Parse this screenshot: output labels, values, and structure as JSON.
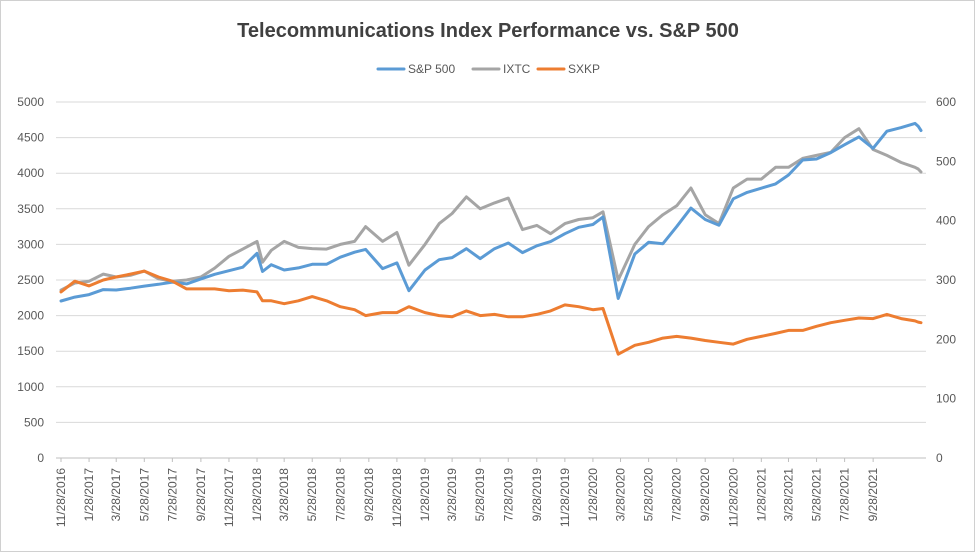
{
  "chart_data": {
    "type": "line",
    "title": "Telecommunications Index Performance vs. S&P 500",
    "legend_position": "top",
    "grid": true,
    "x_tick_labels": [
      "11/28/2016",
      "1/28/2017",
      "3/28/2017",
      "5/28/2017",
      "7/28/2017",
      "9/28/2017",
      "11/28/2017",
      "1/28/2018",
      "3/28/2018",
      "5/28/2018",
      "7/28/2018",
      "9/28/2018",
      "11/28/2018",
      "1/28/2019",
      "3/28/2019",
      "5/28/2019",
      "7/28/2019",
      "9/28/2019",
      "11/28/2019",
      "1/28/2020",
      "3/28/2020",
      "5/28/2020",
      "7/28/2020",
      "9/28/2020",
      "11/28/2020",
      "1/28/2021",
      "3/28/2021",
      "5/28/2021",
      "7/28/2021",
      "9/28/2021"
    ],
    "y_left": {
      "lim": [
        0,
        5000
      ],
      "ticks": [
        0,
        500,
        1000,
        1500,
        2000,
        2500,
        3000,
        3500,
        4000,
        4500,
        5000
      ]
    },
    "y_right": {
      "lim": [
        0,
        600
      ],
      "ticks": [
        0,
        100,
        200,
        300,
        400,
        500,
        600
      ]
    },
    "series": [
      {
        "name": "S&P 500",
        "axis": "left",
        "color": "#5b9bd5",
        "points": [
          [
            "11/28/2016",
            2205
          ],
          [
            "12/28/2016",
            2260
          ],
          [
            "1/28/2017",
            2295
          ],
          [
            "2/28/2017",
            2365
          ],
          [
            "3/28/2017",
            2360
          ],
          [
            "4/28/2017",
            2385
          ],
          [
            "5/28/2017",
            2415
          ],
          [
            "6/28/2017",
            2440
          ],
          [
            "7/28/2017",
            2470
          ],
          [
            "8/28/2017",
            2445
          ],
          [
            "9/28/2017",
            2515
          ],
          [
            "10/28/2017",
            2580
          ],
          [
            "11/28/2017",
            2630
          ],
          [
            "12/28/2017",
            2680
          ],
          [
            "1/28/2018",
            2875
          ],
          [
            "2/9/2018",
            2620
          ],
          [
            "2/28/2018",
            2715
          ],
          [
            "3/28/2018",
            2640
          ],
          [
            "4/28/2018",
            2670
          ],
          [
            "5/28/2018",
            2720
          ],
          [
            "6/28/2018",
            2720
          ],
          [
            "7/28/2018",
            2820
          ],
          [
            "8/28/2018",
            2890
          ],
          [
            "9/21/2018",
            2930
          ],
          [
            "10/28/2018",
            2660
          ],
          [
            "11/28/2018",
            2740
          ],
          [
            "12/24/2018",
            2350
          ],
          [
            "1/28/2019",
            2640
          ],
          [
            "2/28/2019",
            2785
          ],
          [
            "3/28/2019",
            2815
          ],
          [
            "4/28/2019",
            2940
          ],
          [
            "5/28/2019",
            2800
          ],
          [
            "6/28/2019",
            2940
          ],
          [
            "7/28/2019",
            3020
          ],
          [
            "8/28/2019",
            2885
          ],
          [
            "9/28/2019",
            2980
          ],
          [
            "10/28/2019",
            3040
          ],
          [
            "11/28/2019",
            3150
          ],
          [
            "12/28/2019",
            3240
          ],
          [
            "1/28/2020",
            3280
          ],
          [
            "2/19/2020",
            3385
          ],
          [
            "3/23/2020",
            2240
          ],
          [
            "4/28/2020",
            2865
          ],
          [
            "5/28/2020",
            3030
          ],
          [
            "6/28/2020",
            3010
          ],
          [
            "7/28/2020",
            3250
          ],
          [
            "8/28/2020",
            3510
          ],
          [
            "9/28/2020",
            3350
          ],
          [
            "10/28/2020",
            3270
          ],
          [
            "11/28/2020",
            3640
          ],
          [
            "12/28/2020",
            3730
          ],
          [
            "1/28/2021",
            3790
          ],
          [
            "2/28/2021",
            3850
          ],
          [
            "3/28/2021",
            3975
          ],
          [
            "4/28/2021",
            4185
          ],
          [
            "5/28/2021",
            4200
          ],
          [
            "6/28/2021",
            4290
          ],
          [
            "7/28/2021",
            4400
          ],
          [
            "8/28/2021",
            4510
          ],
          [
            "9/28/2021",
            4350
          ],
          [
            "10/28/2021",
            4590
          ],
          [
            "11/28/2021",
            4640
          ],
          [
            "12/28/2021",
            4700
          ],
          [
            "1/4/2022",
            4660
          ],
          [
            "1/10/2022",
            4600
          ]
        ]
      },
      {
        "name": "IXTC",
        "axis": "right",
        "color": "#a5a5a5",
        "points": [
          [
            "11/28/2016",
            283
          ],
          [
            "12/28/2016",
            295
          ],
          [
            "1/28/2017",
            298
          ],
          [
            "2/28/2017",
            310
          ],
          [
            "3/28/2017",
            305
          ],
          [
            "4/28/2017",
            308
          ],
          [
            "5/28/2017",
            315
          ],
          [
            "6/28/2017",
            302
          ],
          [
            "7/28/2017",
            298
          ],
          [
            "8/28/2017",
            300
          ],
          [
            "9/28/2017",
            305
          ],
          [
            "10/28/2017",
            320
          ],
          [
            "11/28/2017",
            340
          ],
          [
            "12/28/2017",
            352
          ],
          [
            "1/28/2018",
            365
          ],
          [
            "2/9/2018",
            330
          ],
          [
            "2/28/2018",
            350
          ],
          [
            "3/28/2018",
            365
          ],
          [
            "4/28/2018",
            355
          ],
          [
            "5/28/2018",
            353
          ],
          [
            "6/28/2018",
            352
          ],
          [
            "7/28/2018",
            360
          ],
          [
            "8/28/2018",
            365
          ],
          [
            "9/21/2018",
            390
          ],
          [
            "10/28/2018",
            365
          ],
          [
            "11/28/2018",
            380
          ],
          [
            "12/24/2018",
            325
          ],
          [
            "1/28/2019",
            360
          ],
          [
            "2/28/2019",
            395
          ],
          [
            "3/28/2019",
            412
          ],
          [
            "4/28/2019",
            440
          ],
          [
            "5/28/2019",
            420
          ],
          [
            "6/28/2019",
            430
          ],
          [
            "7/28/2019",
            438
          ],
          [
            "8/28/2019",
            385
          ],
          [
            "9/28/2019",
            392
          ],
          [
            "10/28/2019",
            378
          ],
          [
            "11/28/2019",
            395
          ],
          [
            "12/28/2019",
            402
          ],
          [
            "1/28/2020",
            405
          ],
          [
            "2/19/2020",
            415
          ],
          [
            "3/23/2020",
            300
          ],
          [
            "4/28/2020",
            360
          ],
          [
            "5/28/2020",
            390
          ],
          [
            "6/28/2020",
            410
          ],
          [
            "7/28/2020",
            425
          ],
          [
            "8/28/2020",
            455
          ],
          [
            "9/28/2020",
            410
          ],
          [
            "10/28/2020",
            395
          ],
          [
            "11/28/2020",
            455
          ],
          [
            "12/28/2020",
            470
          ],
          [
            "1/28/2021",
            470
          ],
          [
            "2/28/2021",
            490
          ],
          [
            "3/28/2021",
            490
          ],
          [
            "4/28/2021",
            505
          ],
          [
            "5/28/2021",
            510
          ],
          [
            "6/28/2021",
            515
          ],
          [
            "7/28/2021",
            540
          ],
          [
            "8/28/2021",
            555
          ],
          [
            "9/28/2021",
            520
          ],
          [
            "10/28/2021",
            510
          ],
          [
            "11/28/2021",
            498
          ],
          [
            "12/28/2021",
            490
          ],
          [
            "1/4/2022",
            487
          ],
          [
            "1/10/2022",
            482
          ]
        ]
      },
      {
        "name": "SXKP",
        "axis": "right",
        "color": "#ed7d31",
        "points": [
          [
            "11/28/2016",
            280
          ],
          [
            "12/28/2016",
            298
          ],
          [
            "1/28/2017",
            290
          ],
          [
            "2/28/2017",
            300
          ],
          [
            "3/28/2017",
            305
          ],
          [
            "4/28/2017",
            310
          ],
          [
            "5/28/2017",
            315
          ],
          [
            "6/28/2017",
            305
          ],
          [
            "7/28/2017",
            298
          ],
          [
            "8/28/2017",
            285
          ],
          [
            "9/28/2017",
            285
          ],
          [
            "10/28/2017",
            285
          ],
          [
            "11/28/2017",
            282
          ],
          [
            "12/28/2017",
            283
          ],
          [
            "1/28/2018",
            280
          ],
          [
            "2/9/2018",
            265
          ],
          [
            "2/28/2018",
            265
          ],
          [
            "3/28/2018",
            260
          ],
          [
            "4/28/2018",
            265
          ],
          [
            "5/28/2018",
            272
          ],
          [
            "6/28/2018",
            265
          ],
          [
            "7/28/2018",
            255
          ],
          [
            "8/28/2018",
            250
          ],
          [
            "9/21/2018",
            240
          ],
          [
            "10/28/2018",
            245
          ],
          [
            "11/28/2018",
            245
          ],
          [
            "12/24/2018",
            255
          ],
          [
            "1/28/2019",
            245
          ],
          [
            "2/28/2019",
            240
          ],
          [
            "3/28/2019",
            238
          ],
          [
            "4/28/2019",
            248
          ],
          [
            "5/28/2019",
            240
          ],
          [
            "6/28/2019",
            242
          ],
          [
            "7/28/2019",
            238
          ],
          [
            "8/28/2019",
            238
          ],
          [
            "9/28/2019",
            242
          ],
          [
            "10/28/2019",
            248
          ],
          [
            "11/28/2019",
            258
          ],
          [
            "12/28/2019",
            255
          ],
          [
            "1/28/2020",
            250
          ],
          [
            "2/19/2020",
            252
          ],
          [
            "3/23/2020",
            175
          ],
          [
            "4/28/2020",
            190
          ],
          [
            "5/28/2020",
            195
          ],
          [
            "6/28/2020",
            202
          ],
          [
            "7/28/2020",
            205
          ],
          [
            "8/28/2020",
            202
          ],
          [
            "9/28/2020",
            198
          ],
          [
            "10/28/2020",
            195
          ],
          [
            "11/28/2020",
            192
          ],
          [
            "12/28/2020",
            200
          ],
          [
            "1/28/2021",
            205
          ],
          [
            "2/28/2021",
            210
          ],
          [
            "3/28/2021",
            215
          ],
          [
            "4/28/2021",
            215
          ],
          [
            "5/28/2021",
            222
          ],
          [
            "6/28/2021",
            228
          ],
          [
            "7/28/2021",
            232
          ],
          [
            "8/28/2021",
            236
          ],
          [
            "9/28/2021",
            235
          ],
          [
            "10/28/2021",
            242
          ],
          [
            "11/28/2021",
            235
          ],
          [
            "12/28/2021",
            231
          ],
          [
            "1/4/2022",
            229
          ],
          [
            "1/10/2022",
            228
          ]
        ]
      }
    ]
  }
}
